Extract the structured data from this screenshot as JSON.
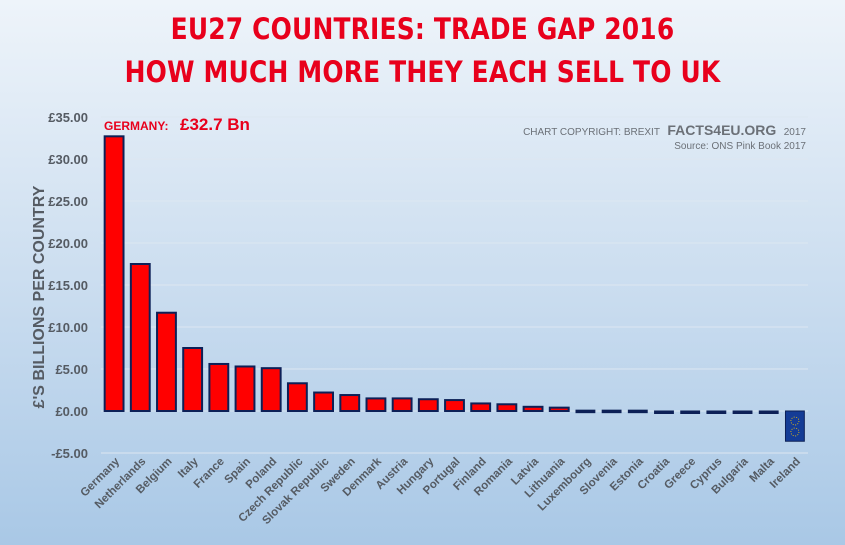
{
  "chart_data": {
    "type": "bar",
    "title": "EU27 COUNTRIES: TRADE GAP 2016",
    "subtitle": "HOW MUCH MORE THEY EACH SELL TO UK",
    "xlabel": "",
    "ylabel": "£'S BILLIONS PER COUNTRY",
    "ylim": [
      -5,
      35
    ],
    "yticks": [
      -5,
      0,
      5,
      10,
      15,
      20,
      25,
      30,
      35
    ],
    "ytick_labels": [
      "-£5.00",
      "£0.00",
      "£5.00",
      "£10.00",
      "£15.00",
      "£20.00",
      "£25.00",
      "£30.00",
      "£35.00"
    ],
    "grid": true,
    "categories": [
      "Germany",
      "Netherlands",
      "Belgium",
      "Italy",
      "France",
      "Spain",
      "Poland",
      "Czech Republic",
      "Slovak Republic",
      "Sweden",
      "Denmark",
      "Austria",
      "Hungary",
      "Portugal",
      "Finland",
      "Romania",
      "Latvia",
      "Lithuania",
      "Luxembourg",
      "Slovenia",
      "Estonia",
      "Croatia",
      "Greece",
      "Cyprus",
      "Bulgaria",
      "Malta",
      "Ireland"
    ],
    "values": [
      32.7,
      17.5,
      11.7,
      7.5,
      5.6,
      5.3,
      5.1,
      3.3,
      2.2,
      1.9,
      1.5,
      1.5,
      1.4,
      1.3,
      0.9,
      0.8,
      0.5,
      0.4,
      0.1,
      0.1,
      0.1,
      -0.1,
      -0.2,
      -0.2,
      -0.2,
      -0.2,
      -3.6
    ],
    "annotation": {
      "label": "GERMANY:",
      "value": "£32.7 Bn"
    },
    "copyright": {
      "prefix": "CHART COPYRIGHT: BREXIT",
      "brand": "FACTS4EU.ORG",
      "year": "2017"
    },
    "source": "Source: ONS Pink Book 2017",
    "colors": {
      "bar": "#ff0000",
      "bar_outline": "#0d2057",
      "eu_flag": "#143c96",
      "title": "#e8001c"
    }
  }
}
